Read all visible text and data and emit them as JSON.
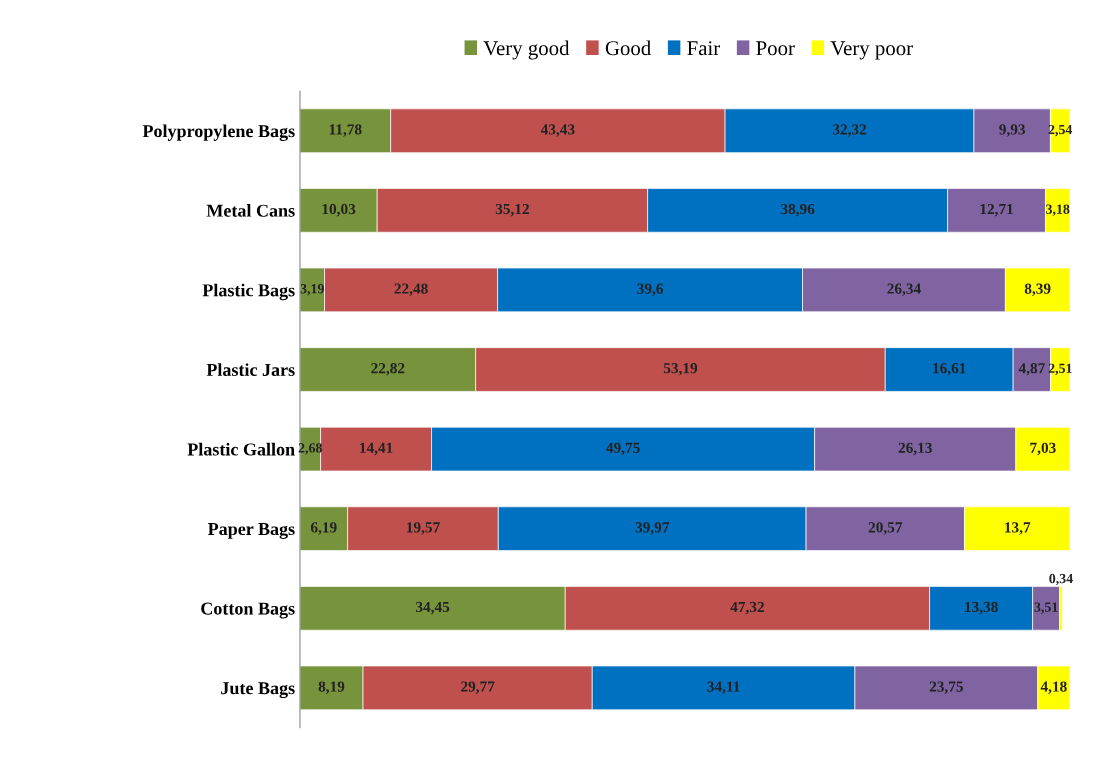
{
  "chart_data": {
    "type": "bar",
    "orientation": "horizontal",
    "stacked": true,
    "legend": "top",
    "grid": false,
    "tick_labels": "y",
    "categories": [
      "Polypropylene Bags",
      "Metal Cans",
      "Plastic Bags",
      "Plastic Jars",
      "Plastic Gallon",
      "Paper Bags",
      "Cotton Bags",
      "Jute Bags"
    ],
    "series": [
      {
        "name": "Very good",
        "color": "#77933c",
        "values": [
          11.78,
          10.03,
          3.19,
          22.82,
          2.68,
          6.19,
          34.45,
          8.19
        ],
        "value_labels": [
          "11,78",
          "10,03",
          "3,19",
          "22,82",
          "2,68",
          "6,19",
          "34,45",
          "8,19"
        ]
      },
      {
        "name": "Good",
        "color": "#c0504d",
        "values": [
          43.43,
          35.12,
          22.48,
          53.19,
          14.41,
          19.57,
          47.32,
          29.77
        ],
        "value_labels": [
          "43,43",
          "35,12",
          "22,48",
          "53,19",
          "14,41",
          "19,57",
          "47,32",
          "29,77"
        ]
      },
      {
        "name": "Fair",
        "color": "#0070c0",
        "values": [
          32.32,
          38.96,
          39.6,
          16.61,
          49.75,
          39.97,
          13.38,
          34.11
        ],
        "value_labels": [
          "32,32",
          "38,96",
          "39,6",
          "16,61",
          "49,75",
          "39,97",
          "13,38",
          "34,11"
        ]
      },
      {
        "name": "Poor",
        "color": "#8064a2",
        "values": [
          9.93,
          12.71,
          26.34,
          4.87,
          26.13,
          20.57,
          3.51,
          23.75
        ],
        "value_labels": [
          "9,93",
          "12,71",
          "26,34",
          "4,87",
          "26,13",
          "20,57",
          "3,51",
          "23,75"
        ]
      },
      {
        "name": "Very poor",
        "color": "#ffff00",
        "values": [
          2.54,
          3.18,
          8.39,
          2.51,
          7.03,
          13.7,
          0.34,
          4.18
        ],
        "value_labels": [
          "2,54",
          "3,18",
          "8,39",
          "2,51",
          "7,03",
          "13,7",
          "0,34",
          "4,18"
        ]
      }
    ]
  }
}
